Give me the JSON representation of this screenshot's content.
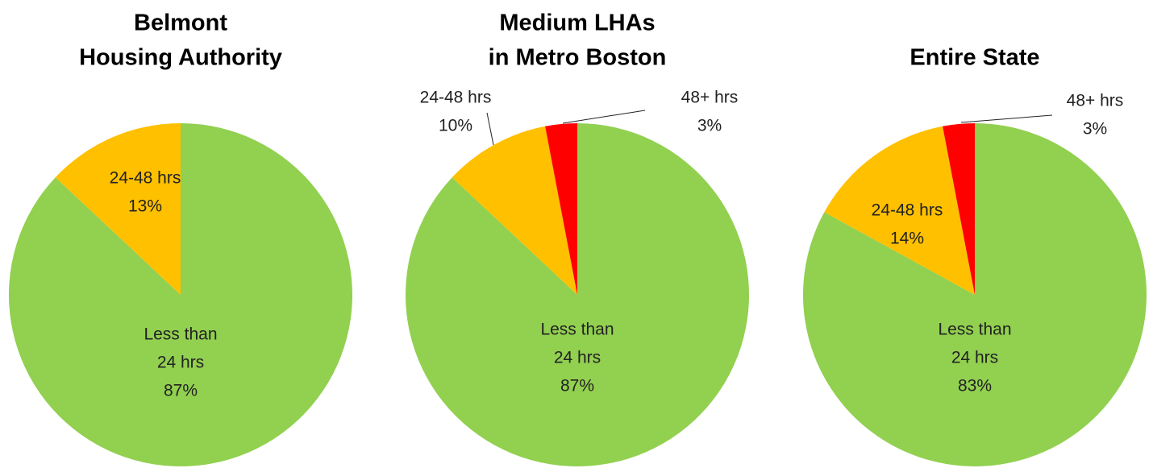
{
  "chart_data": [
    {
      "type": "pie",
      "title": [
        "Belmont",
        "Housing Authority"
      ],
      "categories": [
        [
          "Less than",
          "24 hrs"
        ],
        [
          "24-48 hrs"
        ]
      ],
      "values": [
        87,
        13
      ],
      "value_labels": [
        "87%",
        "13%"
      ],
      "colors": [
        "#92d050",
        "#ffc000"
      ]
    },
    {
      "type": "pie",
      "title": [
        "Medium LHAs",
        "in Metro Boston"
      ],
      "categories": [
        [
          "Less than",
          "24 hrs"
        ],
        [
          "24-48 hrs"
        ],
        [
          "48+ hrs"
        ]
      ],
      "values": [
        87,
        10,
        3
      ],
      "value_labels": [
        "87%",
        "10%",
        "3%"
      ],
      "colors": [
        "#92d050",
        "#ffc000",
        "#ff0000"
      ]
    },
    {
      "type": "pie",
      "title": [
        "Entire State"
      ],
      "categories": [
        [
          "Less than",
          "24 hrs"
        ],
        [
          "24-48 hrs"
        ],
        [
          "48+ hrs"
        ]
      ],
      "values": [
        83,
        14,
        3
      ],
      "value_labels": [
        "83%",
        "14%",
        "3%"
      ],
      "colors": [
        "#92d050",
        "#ffc000",
        "#ff0000"
      ]
    }
  ]
}
